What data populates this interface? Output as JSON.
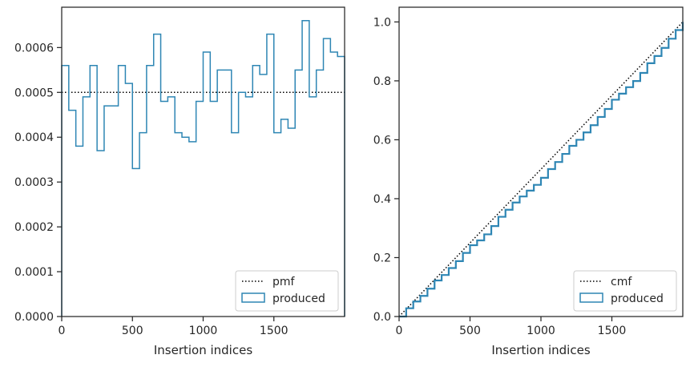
{
  "chart_data": [
    {
      "type": "line",
      "subtype": "step-histogram",
      "xlabel": "Insertion indices",
      "ylabel": "",
      "title": "",
      "xlim": [
        0,
        2000
      ],
      "ylim": [
        0,
        0.00069
      ],
      "xticks": [
        0,
        500,
        1000,
        1500
      ],
      "yticks": [
        0.0,
        0.0001,
        0.0002,
        0.0003,
        0.0004,
        0.0005,
        0.0006
      ],
      "ytick_labels": [
        "0.0000",
        "0.0001",
        "0.0002",
        "0.0003",
        "0.0004",
        "0.0005",
        "0.0006"
      ],
      "grid": false,
      "legend_position": "lower-right",
      "reference": {
        "name": "pmf",
        "value": 0.0005,
        "style": "dotted",
        "color": "#000000"
      },
      "series": [
        {
          "name": "produced",
          "color": "#2e86b4",
          "bin_edges": [
            0,
            50,
            100,
            150,
            200,
            250,
            300,
            350,
            400,
            450,
            500,
            550,
            600,
            650,
            700,
            750,
            800,
            850,
            900,
            950,
            1000,
            1050,
            1100,
            1150,
            1200,
            1250,
            1300,
            1350,
            1400,
            1450,
            1500,
            1550,
            1600,
            1650,
            1700,
            1750,
            1800,
            1850,
            1900,
            1950,
            2000
          ],
          "values": [
            0.00056,
            0.00046,
            0.00038,
            0.00049,
            0.00056,
            0.00037,
            0.00047,
            0.00047,
            0.00056,
            0.00052,
            0.00033,
            0.00041,
            0.00056,
            0.00063,
            0.00048,
            0.00049,
            0.00041,
            0.0004,
            0.00039,
            0.00048,
            0.00059,
            0.00048,
            0.00055,
            0.00055,
            0.00041,
            0.0005,
            0.00049,
            0.00056,
            0.00054,
            0.00063,
            0.00041,
            0.00044,
            0.00042,
            0.00055,
            0.00066,
            0.00049,
            0.00055,
            0.00062,
            0.00059,
            0.00058
          ]
        }
      ]
    },
    {
      "type": "line",
      "subtype": "cumulative-step",
      "xlabel": "Insertion indices",
      "ylabel": "",
      "title": "",
      "xlim": [
        0,
        2000
      ],
      "ylim": [
        0,
        1.05
      ],
      "xticks": [
        0,
        500,
        1000,
        1500
      ],
      "yticks": [
        0.0,
        0.2,
        0.4,
        0.6,
        0.8,
        1.0
      ],
      "ytick_labels": [
        "0.0",
        "0.2",
        "0.4",
        "0.6",
        "0.8",
        "1.0"
      ],
      "grid": false,
      "legend_position": "lower-right",
      "reference": {
        "name": "cmf",
        "x": [
          0,
          2000
        ],
        "y": [
          0,
          1.0
        ],
        "style": "dotted",
        "color": "#000000"
      },
      "series": [
        {
          "name": "produced",
          "color": "#2e86b4",
          "x": [
            0,
            50,
            100,
            150,
            200,
            250,
            300,
            350,
            400,
            450,
            500,
            550,
            600,
            650,
            700,
            750,
            800,
            850,
            900,
            950,
            1000,
            1050,
            1100,
            1150,
            1200,
            1250,
            1300,
            1350,
            1400,
            1450,
            1500,
            1550,
            1600,
            1650,
            1700,
            1750,
            1800,
            1850,
            1900,
            1950,
            2000
          ],
          "y": [
            0,
            0.028,
            0.051,
            0.07,
            0.0945,
            0.1225,
            0.141,
            0.1645,
            0.188,
            0.216,
            0.242,
            0.2585,
            0.279,
            0.307,
            0.3385,
            0.3625,
            0.387,
            0.4075,
            0.4275,
            0.447,
            0.471,
            0.5005,
            0.5245,
            0.552,
            0.5795,
            0.6,
            0.625,
            0.6495,
            0.6775,
            0.7045,
            0.736,
            0.7565,
            0.7785,
            0.7995,
            0.827,
            0.86,
            0.8845,
            0.912,
            0.943,
            0.9725,
            1.0
          ]
        }
      ]
    }
  ]
}
